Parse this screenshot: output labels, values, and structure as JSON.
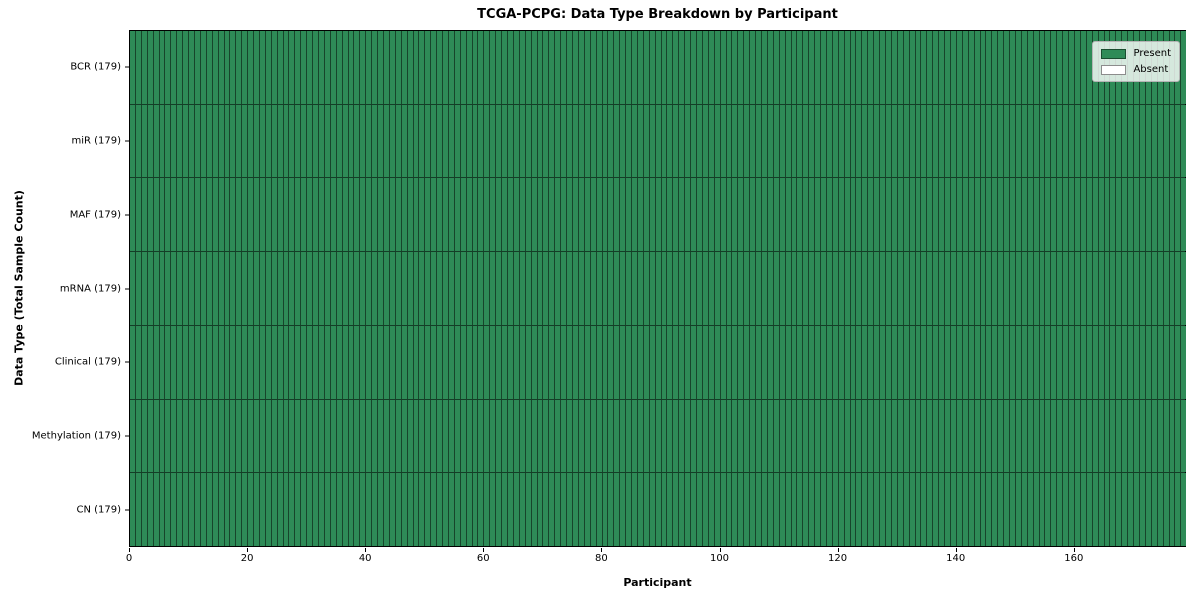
{
  "figure": {
    "title": "TCGA-PCPG: Data Type Breakdown by Participant",
    "xlabel": "Participant",
    "ylabel": "Data Type (Total Sample Count)"
  },
  "legend": {
    "items": [
      {
        "label": "Present",
        "color": "#2e8b57"
      },
      {
        "label": "Absent",
        "color": "#ffffff"
      }
    ]
  },
  "chart_data": {
    "type": "heatmap",
    "title": "TCGA-PCPG: Data Type Breakdown by Participant",
    "xlabel": "Participant",
    "ylabel": "Data Type (Total Sample Count)",
    "x_ticks": [
      0,
      20,
      40,
      60,
      80,
      100,
      120,
      140,
      160
    ],
    "x_range": [
      0,
      179
    ],
    "n_participants": 179,
    "categories": [
      "BCR (179)",
      "miR (179)",
      "MAF (179)",
      "mRNA (179)",
      "Clinical (179)",
      "Methylation (179)",
      "CN (179)"
    ],
    "series": [
      {
        "name": "BCR",
        "total_samples": 179,
        "present_count": 179,
        "absent_count": 0
      },
      {
        "name": "miR",
        "total_samples": 179,
        "present_count": 179,
        "absent_count": 0
      },
      {
        "name": "MAF",
        "total_samples": 179,
        "present_count": 179,
        "absent_count": 0
      },
      {
        "name": "mRNA",
        "total_samples": 179,
        "present_count": 179,
        "absent_count": 0
      },
      {
        "name": "Clinical",
        "total_samples": 179,
        "present_count": 179,
        "absent_count": 0
      },
      {
        "name": "Methylation",
        "total_samples": 179,
        "present_count": 179,
        "absent_count": 0
      },
      {
        "name": "CN",
        "total_samples": 179,
        "present_count": 179,
        "absent_count": 0
      }
    ],
    "legend_entries": [
      "Present",
      "Absent"
    ],
    "legend_position": "upper right",
    "grid": "cell-borders",
    "colors": {
      "present": "#2e8b57",
      "absent": "#ffffff",
      "cell_border": "rgba(0,0,0,0.5)",
      "frame": "#000000"
    }
  }
}
